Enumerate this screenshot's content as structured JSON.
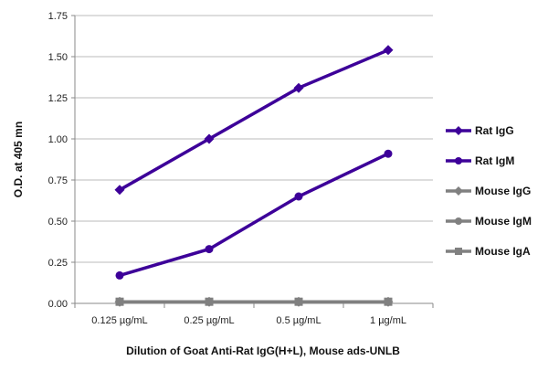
{
  "chart_data": {
    "type": "line",
    "title": "",
    "xlabel": "Dilution of Goat Anti-Rat IgG(H+L), Mouse ads-UNLB",
    "ylabel": "O.D. at 405 mn",
    "categories": [
      "0.125 µg/mL",
      "0.25 µg/mL",
      "0.5 µg/mL",
      "1 µg/mL"
    ],
    "ylim": [
      0,
      1.75
    ],
    "yticks": [
      "0.00",
      "0.25",
      "0.50",
      "0.75",
      "1.00",
      "1.25",
      "1.50",
      "1.75"
    ],
    "grid": true,
    "legend": "right",
    "series": [
      {
        "name": "Rat IgG",
        "values": [
          0.69,
          1.0,
          1.31,
          1.54
        ],
        "color": "#3d0099",
        "marker": "diamond"
      },
      {
        "name": "Rat IgM",
        "values": [
          0.17,
          0.33,
          0.65,
          0.91
        ],
        "color": "#3d0099",
        "marker": "circle"
      },
      {
        "name": "Mouse IgG",
        "values": [
          0.01,
          0.01,
          0.01,
          0.01
        ],
        "color": "#808080",
        "marker": "diamond"
      },
      {
        "name": "Mouse IgM",
        "values": [
          0.01,
          0.01,
          0.01,
          0.01
        ],
        "color": "#808080",
        "marker": "circle"
      },
      {
        "name": "Mouse IgA",
        "values": [
          0.01,
          0.01,
          0.01,
          0.01
        ],
        "color": "#808080",
        "marker": "square"
      }
    ]
  }
}
